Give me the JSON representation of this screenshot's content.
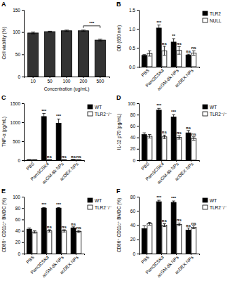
{
  "chart_data": [
    {
      "type": "bar",
      "title": "A",
      "x_label": "Concentration (ug/mL)",
      "y_label": "Cell viability (%)",
      "categories": [
        "10",
        "50",
        "100",
        "200",
        "500"
      ],
      "values": [
        98,
        101,
        103,
        103,
        82
      ],
      "errors": [
        2,
        1,
        1.5,
        1.5,
        2
      ],
      "color": "#333333",
      "ylim": [
        0,
        150
      ],
      "yticks": [
        0,
        50,
        100,
        150
      ],
      "annotations": [
        {
          "text": "***",
          "between": [
            "200",
            "500"
          ]
        }
      ]
    },
    {
      "type": "bar",
      "title": "B",
      "y_label": "OD (650 nm)",
      "legend": "right",
      "categories": [
        "PBS",
        "Pam3CSK4",
        "acGM-8k NPs",
        "acDEX NPs"
      ],
      "series": [
        {
          "name": "TLR2",
          "color": "#000000",
          "values": [
            0.3,
            1.02,
            0.65,
            0.31
          ],
          "errors": [
            0.02,
            0.08,
            0.09,
            0.02
          ],
          "annotations": [
            null,
            "***",
            "**",
            "ns"
          ]
        },
        {
          "name": "NULL",
          "color": "#ffffff",
          "values": [
            0.35,
            0.42,
            0.43,
            0.36
          ],
          "errors": [
            0.07,
            0.12,
            0.1,
            0.06
          ],
          "annotations": [
            null,
            "ns",
            "ns",
            "ns"
          ]
        }
      ],
      "ylim": [
        0,
        1.5
      ],
      "yticks": [
        {
          "value": 0,
          "label": "0.0"
        },
        {
          "value": 0.5,
          "label": "0.5"
        },
        {
          "value": 1,
          "label": "1.0"
        },
        {
          "value": 1.5,
          "label": "1.5"
        }
      ]
    },
    {
      "type": "bar",
      "title": "C",
      "y_label": "TNF-α (pg/mL)",
      "legend": "right",
      "categories": [
        "PBS",
        "Pam3CSK4",
        "acGM-8k NPs",
        "acDEX NPs"
      ],
      "series": [
        {
          "name": "WT",
          "color": "#000000",
          "values": [
            10,
            1150,
            975,
            15
          ],
          "errors": [
            5,
            80,
            110,
            5
          ],
          "annotations": [
            null,
            "***",
            "***",
            "ns"
          ]
        },
        {
          "name": "TLR2⁻/⁻",
          "color": "#ffffff",
          "values": [
            8,
            8,
            8,
            8
          ],
          "errors": [
            3,
            3,
            3,
            3
          ],
          "annotations": [
            null,
            "ns",
            "ns",
            "ns"
          ]
        }
      ],
      "ylim": [
        0,
        1500
      ],
      "yticks": [
        0,
        500,
        1000,
        1500
      ]
    },
    {
      "type": "bar",
      "title": "D",
      "y_label": "IL-12 p70 (pg/mL)",
      "legend": "right",
      "categories": [
        "PBS",
        "Pam3CSK4",
        "acGM-8k NPs",
        "acDEX NPs"
      ],
      "series": [
        {
          "name": "WT",
          "color": "#000000",
          "values": [
            45,
            88,
            76,
            48
          ],
          "errors": [
            3,
            3,
            4,
            4
          ],
          "annotations": [
            null,
            "***",
            "***",
            "ns"
          ]
        },
        {
          "name": "TLR2⁻/⁻",
          "color": "#ffffff",
          "values": [
            42,
            41,
            40,
            38
          ],
          "errors": [
            3,
            3,
            3,
            3
          ],
          "annotations": [
            null,
            "ns",
            "ns",
            "ns"
          ]
        }
      ],
      "ylim": [
        0,
        100
      ],
      "yticks": [
        0,
        20,
        40,
        60,
        80,
        100
      ]
    },
    {
      "type": "bar",
      "title": "E",
      "y_label": "CD80⁺ CD11c⁺ BMDC (%)",
      "legend": "right",
      "categories": [
        "PBS",
        "Pam3CSK4",
        "acGM-8k NPs",
        "acDEX NPs"
      ],
      "series": [
        {
          "name": "WT",
          "color": "#000000",
          "values": [
            43,
            80,
            80,
            45
          ],
          "errors": [
            2,
            1,
            1,
            2
          ],
          "annotations": [
            null,
            "***",
            "***",
            "ns"
          ]
        },
        {
          "name": "TLR2⁻/⁻",
          "color": "#ffffff",
          "values": [
            38,
            40,
            40,
            39
          ],
          "errors": [
            2,
            2,
            2,
            2
          ],
          "annotations": [
            null,
            "ns",
            "ns",
            "ns"
          ]
        }
      ],
      "ylim": [
        0,
        100
      ],
      "yticks": [
        0,
        20,
        40,
        60,
        80,
        100
      ]
    },
    {
      "type": "bar",
      "title": "F",
      "y_label": "CD86⁺ CD11c⁺ BMDC (%)",
      "legend": "right",
      "categories": [
        "PBS",
        "Pam3CSK4",
        "acGM-8k NPs",
        "acDEX NPs"
      ],
      "series": [
        {
          "name": "WT",
          "color": "#000000",
          "values": [
            35,
            73,
            72,
            33
          ],
          "errors": [
            4,
            2,
            2,
            3
          ],
          "annotations": [
            null,
            "***",
            "***",
            "ns"
          ]
        },
        {
          "name": "TLR2⁻/⁻",
          "color": "#ffffff",
          "values": [
            42,
            40,
            41,
            37
          ],
          "errors": [
            2,
            2,
            2,
            2
          ],
          "annotations": [
            null,
            "ns",
            "ns",
            "ns"
          ]
        }
      ],
      "ylim": [
        0,
        80
      ],
      "yticks": [
        0,
        20,
        40,
        60,
        80
      ]
    }
  ]
}
